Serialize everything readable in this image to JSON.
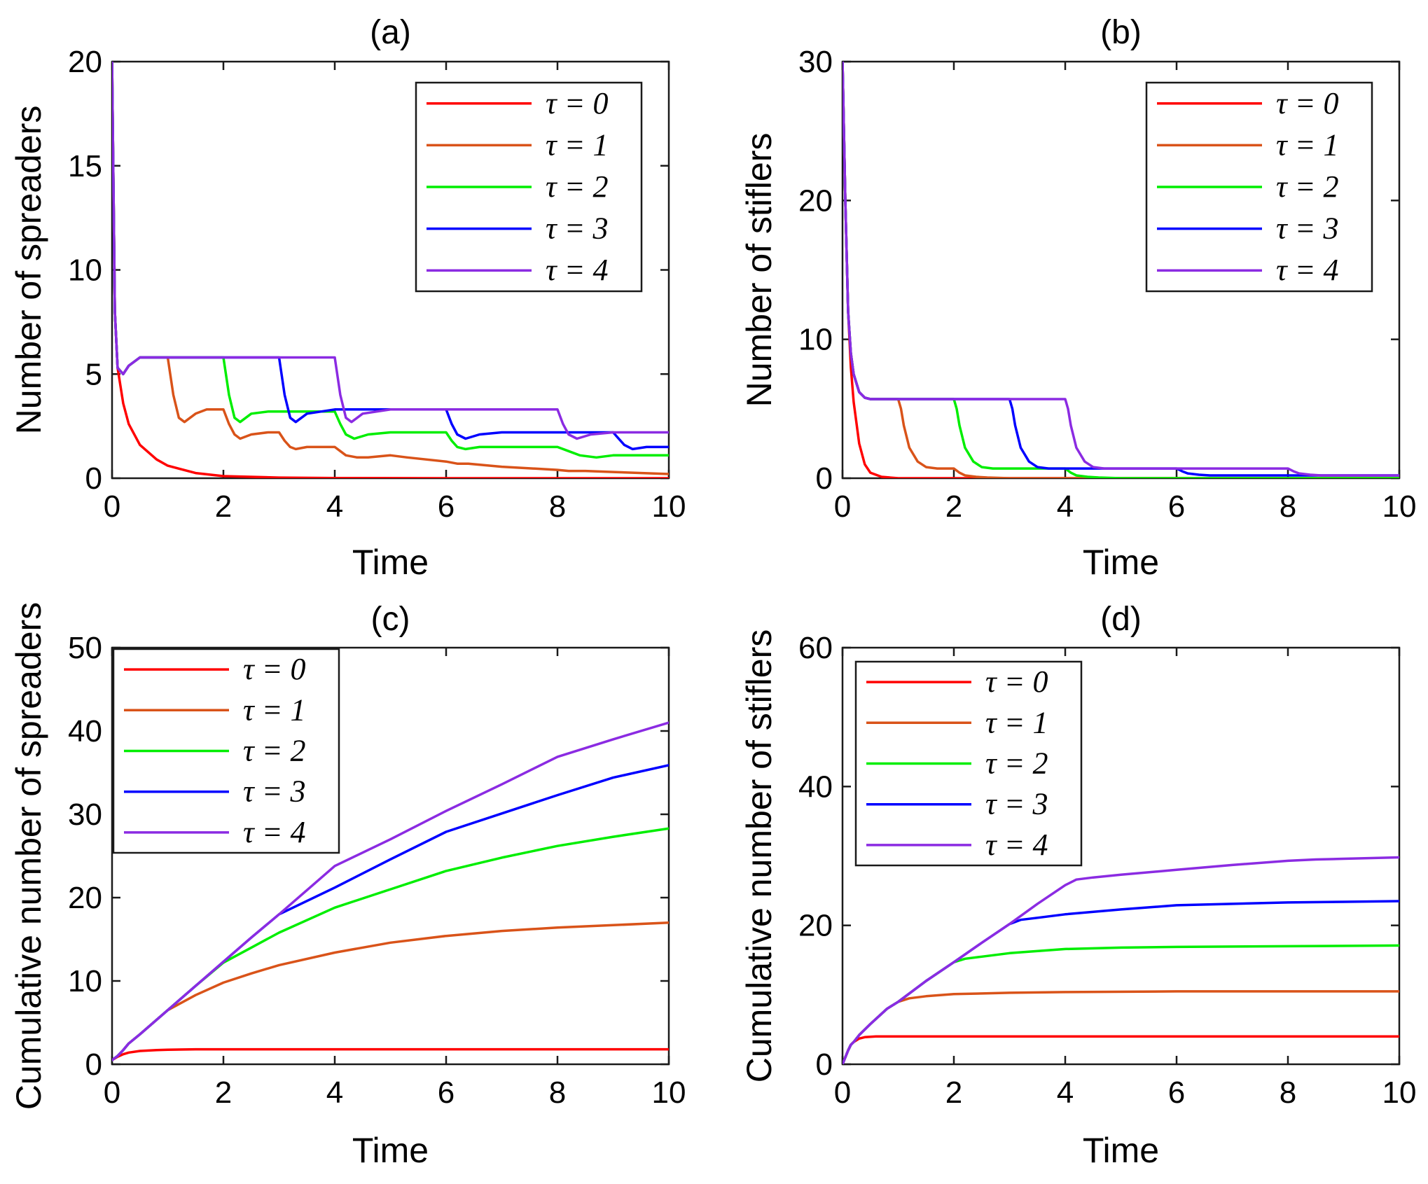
{
  "colors": {
    "tau0": "#ff0000",
    "tau1": "#d95319",
    "tau2": "#00ee00",
    "tau3": "#0000ff",
    "tau4": "#8b2be2"
  },
  "chart_data": [
    {
      "id": "a",
      "type": "line",
      "title": "(a)",
      "xlabel": "Time",
      "ylabel": "Number of spreaders",
      "xlim": [
        0,
        10
      ],
      "ylim": [
        0,
        20
      ],
      "xticks": [
        0,
        2,
        4,
        6,
        8,
        10
      ],
      "yticks": [
        0,
        5,
        10,
        15,
        20
      ],
      "legend_position": "top-right",
      "series": [
        {
          "name": "τ = 0",
          "key": "tau0",
          "x": [
            0,
            0.05,
            0.1,
            0.2,
            0.3,
            0.5,
            0.8,
            1.0,
            1.5,
            2.0,
            3.0,
            4.0,
            6.0,
            8.0,
            10.0
          ],
          "y": [
            20,
            8.0,
            5.3,
            3.6,
            2.6,
            1.6,
            0.9,
            0.6,
            0.25,
            0.1,
            0.03,
            0.01,
            0.0,
            0.0,
            0.0
          ]
        },
        {
          "name": "τ = 1",
          "key": "tau1",
          "x": [
            0,
            0.05,
            0.1,
            0.2,
            0.3,
            0.5,
            0.8,
            1.0,
            1.1,
            1.2,
            1.3,
            1.5,
            1.7,
            2.0,
            2.1,
            2.2,
            2.3,
            2.5,
            2.8,
            3.0,
            3.1,
            3.2,
            3.3,
            3.5,
            4.0,
            4.1,
            4.2,
            4.4,
            4.6,
            5.0,
            5.3,
            6.0,
            6.2,
            6.4,
            7.0,
            8.0,
            8.2,
            8.5,
            9.0,
            10.0
          ],
          "y": [
            20,
            8.0,
            5.3,
            5.0,
            5.4,
            5.8,
            5.8,
            5.8,
            4.0,
            2.9,
            2.7,
            3.1,
            3.3,
            3.3,
            2.6,
            2.1,
            1.9,
            2.1,
            2.2,
            2.2,
            1.8,
            1.5,
            1.4,
            1.5,
            1.5,
            1.3,
            1.1,
            1.0,
            1.0,
            1.1,
            1.0,
            0.8,
            0.7,
            0.7,
            0.55,
            0.4,
            0.35,
            0.35,
            0.3,
            0.2
          ]
        },
        {
          "name": "τ = 2",
          "key": "tau2",
          "x": [
            0,
            0.05,
            0.1,
            0.2,
            0.3,
            0.5,
            1.0,
            2.0,
            2.1,
            2.2,
            2.3,
            2.5,
            2.8,
            3.0,
            3.5,
            4.0,
            4.1,
            4.2,
            4.35,
            4.6,
            5.0,
            6.0,
            6.1,
            6.2,
            6.35,
            6.6,
            7.0,
            8.0,
            8.2,
            8.4,
            8.7,
            9.0,
            10.0
          ],
          "y": [
            20,
            8.0,
            5.3,
            5.0,
            5.4,
            5.8,
            5.8,
            5.8,
            4.0,
            2.9,
            2.7,
            3.1,
            3.2,
            3.2,
            3.2,
            3.2,
            2.6,
            2.1,
            1.9,
            2.1,
            2.2,
            2.2,
            1.8,
            1.5,
            1.4,
            1.5,
            1.5,
            1.5,
            1.3,
            1.1,
            1.0,
            1.1,
            1.1
          ]
        },
        {
          "name": "τ = 3",
          "key": "tau3",
          "x": [
            0,
            0.05,
            0.1,
            0.2,
            0.3,
            0.5,
            1.0,
            3.0,
            3.1,
            3.2,
            3.3,
            3.5,
            4.0,
            4.5,
            6.0,
            6.1,
            6.2,
            6.35,
            6.6,
            7.0,
            8.0,
            9.0,
            9.1,
            9.2,
            9.35,
            9.6,
            10.0
          ],
          "y": [
            20,
            8.0,
            5.3,
            5.0,
            5.4,
            5.8,
            5.8,
            5.8,
            4.0,
            2.9,
            2.7,
            3.1,
            3.3,
            3.3,
            3.3,
            2.6,
            2.1,
            1.9,
            2.1,
            2.2,
            2.2,
            2.2,
            1.9,
            1.6,
            1.4,
            1.5,
            1.5
          ]
        },
        {
          "name": "τ = 4",
          "key": "tau4",
          "x": [
            0,
            0.05,
            0.1,
            0.2,
            0.3,
            0.5,
            1.0,
            4.0,
            4.1,
            4.2,
            4.3,
            4.5,
            5.0,
            8.0,
            8.1,
            8.2,
            8.35,
            8.6,
            9.0,
            10.0
          ],
          "y": [
            20,
            8.0,
            5.3,
            5.0,
            5.4,
            5.8,
            5.8,
            5.8,
            4.0,
            2.9,
            2.7,
            3.1,
            3.3,
            3.3,
            2.6,
            2.1,
            1.9,
            2.1,
            2.2,
            2.2
          ]
        }
      ]
    },
    {
      "id": "b",
      "type": "line",
      "title": "(b)",
      "xlabel": "Time",
      "ylabel": "Number of stiflers",
      "xlim": [
        0,
        10
      ],
      "ylim": [
        0,
        30
      ],
      "xticks": [
        0,
        2,
        4,
        6,
        8,
        10
      ],
      "yticks": [
        0,
        10,
        20,
        30
      ],
      "legend_position": "top-right",
      "series": [
        {
          "name": "τ = 0",
          "key": "tau0",
          "x": [
            0,
            0.05,
            0.1,
            0.15,
            0.2,
            0.3,
            0.4,
            0.5,
            0.7,
            1.0,
            2.0,
            10.0
          ],
          "y": [
            30,
            20,
            12,
            8,
            5.5,
            2.5,
            1.0,
            0.4,
            0.1,
            0.0,
            0.0,
            0.0
          ]
        },
        {
          "name": "τ = 1",
          "key": "tau1",
          "x": [
            0,
            0.05,
            0.1,
            0.15,
            0.2,
            0.3,
            0.4,
            0.5,
            0.7,
            1.0,
            1.05,
            1.1,
            1.2,
            1.35,
            1.5,
            1.7,
            2.0,
            2.1,
            2.2,
            2.4,
            2.6,
            3.0,
            4.0,
            10.0
          ],
          "y": [
            30,
            20,
            12,
            9,
            7.5,
            6.2,
            5.8,
            5.7,
            5.7,
            5.7,
            5.0,
            3.8,
            2.2,
            1.2,
            0.8,
            0.7,
            0.7,
            0.4,
            0.2,
            0.1,
            0.05,
            0.0,
            0.0,
            0.0
          ]
        },
        {
          "name": "τ = 2",
          "key": "tau2",
          "x": [
            0,
            0.05,
            0.1,
            0.15,
            0.2,
            0.3,
            0.4,
            0.5,
            0.7,
            2.0,
            2.05,
            2.1,
            2.2,
            2.35,
            2.5,
            2.7,
            3.0,
            4.0,
            4.1,
            4.2,
            4.4,
            4.6,
            5.0,
            6.0,
            10.0
          ],
          "y": [
            30,
            20,
            12,
            9,
            7.5,
            6.2,
            5.8,
            5.7,
            5.7,
            5.7,
            5.0,
            3.8,
            2.2,
            1.2,
            0.8,
            0.7,
            0.7,
            0.7,
            0.4,
            0.2,
            0.1,
            0.05,
            0.0,
            0.0,
            0.0
          ]
        },
        {
          "name": "τ = 3",
          "key": "tau3",
          "x": [
            0,
            0.05,
            0.1,
            0.15,
            0.2,
            0.3,
            0.4,
            0.5,
            0.7,
            3.0,
            3.05,
            3.1,
            3.2,
            3.35,
            3.5,
            3.7,
            4.0,
            6.0,
            6.1,
            6.2,
            6.4,
            6.6,
            7.0,
            10.0
          ],
          "y": [
            30,
            20,
            12,
            9,
            7.5,
            6.2,
            5.8,
            5.7,
            5.7,
            5.7,
            5.0,
            3.8,
            2.2,
            1.2,
            0.8,
            0.7,
            0.7,
            0.7,
            0.5,
            0.35,
            0.25,
            0.2,
            0.2,
            0.2
          ]
        },
        {
          "name": "τ = 4",
          "key": "tau4",
          "x": [
            0,
            0.05,
            0.1,
            0.15,
            0.2,
            0.3,
            0.4,
            0.5,
            0.7,
            4.0,
            4.05,
            4.1,
            4.2,
            4.35,
            4.5,
            4.7,
            5.0,
            8.0,
            8.1,
            8.2,
            8.4,
            8.6,
            9.0,
            10.0
          ],
          "y": [
            30,
            20,
            12,
            9,
            7.5,
            6.2,
            5.8,
            5.7,
            5.7,
            5.7,
            5.0,
            3.8,
            2.2,
            1.2,
            0.8,
            0.7,
            0.7,
            0.7,
            0.5,
            0.35,
            0.25,
            0.2,
            0.2,
            0.2
          ]
        }
      ]
    },
    {
      "id": "c",
      "type": "line",
      "title": "(c)",
      "xlabel": "Time",
      "ylabel": "Cumulative number of spreaders",
      "xlim": [
        0,
        10
      ],
      "ylim": [
        0,
        50
      ],
      "xticks": [
        0,
        2,
        4,
        6,
        8,
        10
      ],
      "yticks": [
        0,
        10,
        20,
        30,
        40,
        50
      ],
      "legend_position": "top-left",
      "series": [
        {
          "name": "τ = 0",
          "key": "tau0",
          "x": [
            0,
            0.1,
            0.2,
            0.3,
            0.5,
            0.8,
            1.0,
            1.5,
            2.0,
            10.0
          ],
          "y": [
            0.5,
            0.9,
            1.2,
            1.4,
            1.6,
            1.7,
            1.75,
            1.8,
            1.8,
            1.8
          ]
        },
        {
          "name": "τ = 1",
          "key": "tau1",
          "x": [
            0,
            0.1,
            0.2,
            0.3,
            0.5,
            1.0,
            1.5,
            2.0,
            2.5,
            3.0,
            4.0,
            5.0,
            6.0,
            7.0,
            8.0,
            9.0,
            10.0
          ],
          "y": [
            0.5,
            1.0,
            1.7,
            2.5,
            3.6,
            6.5,
            8.3,
            9.8,
            10.9,
            11.9,
            13.4,
            14.6,
            15.4,
            16.0,
            16.4,
            16.7,
            17.0
          ]
        },
        {
          "name": "τ = 2",
          "key": "tau2",
          "x": [
            0,
            0.1,
            0.2,
            0.3,
            0.5,
            1.0,
            1.5,
            2.0,
            2.5,
            3.0,
            4.0,
            5.0,
            6.0,
            7.0,
            8.0,
            9.0,
            10.0
          ],
          "y": [
            0.5,
            1.0,
            1.7,
            2.5,
            3.6,
            6.5,
            9.4,
            12.2,
            14.0,
            15.8,
            18.8,
            21.0,
            23.2,
            24.8,
            26.2,
            27.3,
            28.3
          ]
        },
        {
          "name": "τ = 3",
          "key": "tau3",
          "x": [
            0,
            0.1,
            0.2,
            0.3,
            0.5,
            1.0,
            1.5,
            2.0,
            2.5,
            3.0,
            4.0,
            5.0,
            6.0,
            7.0,
            8.0,
            9.0,
            10.0
          ],
          "y": [
            0.5,
            1.0,
            1.7,
            2.5,
            3.6,
            6.5,
            9.4,
            12.3,
            15.2,
            18.0,
            21.2,
            24.6,
            27.9,
            30.1,
            32.3,
            34.4,
            35.9
          ]
        },
        {
          "name": "τ = 4",
          "key": "tau4",
          "x": [
            0,
            0.1,
            0.2,
            0.3,
            0.5,
            1.0,
            1.5,
            2.0,
            2.5,
            3.0,
            3.5,
            4.0,
            5.0,
            6.0,
            7.0,
            8.0,
            9.0,
            10.0
          ],
          "y": [
            0.5,
            1.0,
            1.7,
            2.5,
            3.6,
            6.5,
            9.4,
            12.3,
            15.2,
            18.0,
            20.9,
            23.8,
            27.0,
            30.4,
            33.6,
            36.9,
            39.0,
            41.0
          ]
        }
      ]
    },
    {
      "id": "d",
      "type": "line",
      "title": "(d)",
      "xlabel": "Time",
      "ylabel": "Cumulative number of stiflers",
      "xlim": [
        0,
        10
      ],
      "ylim": [
        0,
        60
      ],
      "xticks": [
        0,
        2,
        4,
        6,
        8,
        10
      ],
      "yticks": [
        0,
        20,
        40,
        60
      ],
      "legend_position": "top-left",
      "series": [
        {
          "name": "τ = 0",
          "key": "tau0",
          "x": [
            0,
            0.05,
            0.1,
            0.15,
            0.2,
            0.3,
            0.4,
            0.6,
            0.8,
            1.0,
            10.0
          ],
          "y": [
            0,
            1.0,
            2.0,
            2.8,
            3.2,
            3.7,
            3.9,
            4.0,
            4.0,
            4.0,
            4.0
          ]
        },
        {
          "name": "τ = 1",
          "key": "tau1",
          "x": [
            0,
            0.05,
            0.1,
            0.15,
            0.2,
            0.3,
            0.5,
            0.8,
            1.0,
            1.2,
            1.5,
            2.0,
            3.0,
            4.0,
            6.0,
            8.0,
            10.0
          ],
          "y": [
            0,
            1.0,
            2.0,
            2.8,
            3.2,
            4.2,
            5.8,
            8.0,
            9.0,
            9.5,
            9.8,
            10.1,
            10.3,
            10.4,
            10.5,
            10.5,
            10.5
          ]
        },
        {
          "name": "τ = 2",
          "key": "tau2",
          "x": [
            0,
            0.05,
            0.1,
            0.15,
            0.2,
            0.3,
            0.5,
            0.8,
            1.0,
            1.5,
            2.0,
            2.2,
            2.5,
            3.0,
            4.0,
            5.0,
            6.0,
            8.0,
            10.0
          ],
          "y": [
            0,
            1.0,
            2.0,
            2.8,
            3.2,
            4.2,
            5.8,
            8.0,
            9.0,
            12.0,
            14.7,
            15.2,
            15.5,
            16.0,
            16.6,
            16.8,
            16.9,
            17.0,
            17.1
          ]
        },
        {
          "name": "τ = 3",
          "key": "tau3",
          "x": [
            0,
            0.05,
            0.1,
            0.15,
            0.2,
            0.3,
            0.5,
            0.8,
            1.0,
            1.5,
            2.0,
            2.5,
            3.0,
            3.2,
            3.5,
            4.0,
            5.0,
            6.0,
            7.0,
            8.0,
            9.0,
            10.0
          ],
          "y": [
            0,
            1.0,
            2.0,
            2.8,
            3.2,
            4.2,
            5.8,
            8.0,
            9.0,
            12.0,
            14.7,
            17.5,
            20.2,
            20.8,
            21.1,
            21.6,
            22.3,
            22.9,
            23.1,
            23.3,
            23.4,
            23.5
          ]
        },
        {
          "name": "τ = 4",
          "key": "tau4",
          "x": [
            0,
            0.05,
            0.1,
            0.15,
            0.2,
            0.3,
            0.5,
            0.8,
            1.0,
            1.5,
            2.0,
            2.5,
            3.0,
            3.5,
            4.0,
            4.2,
            4.5,
            5.0,
            6.0,
            7.0,
            8.0,
            8.5,
            9.0,
            10.0
          ],
          "y": [
            0,
            1.0,
            2.0,
            2.8,
            3.2,
            4.2,
            5.8,
            8.0,
            9.0,
            12.0,
            14.7,
            17.5,
            20.2,
            23.1,
            25.8,
            26.6,
            26.9,
            27.3,
            28.0,
            28.7,
            29.3,
            29.5,
            29.6,
            29.8
          ]
        }
      ]
    }
  ]
}
